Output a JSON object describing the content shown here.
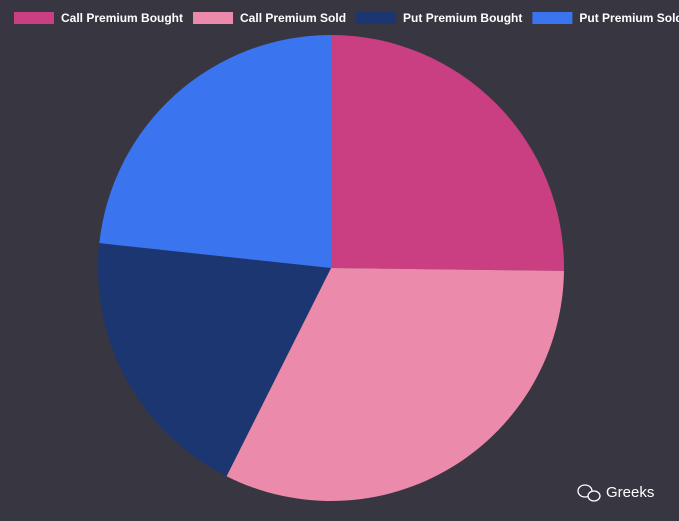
{
  "chart_data": {
    "type": "pie",
    "categories": [
      "Call Premium Bought",
      "Call Premium Sold",
      "Put Premium Bought",
      "Put Premium Sold"
    ],
    "values": [
      25.2,
      32.2,
      19.3,
      23.3
    ],
    "colors": [
      "#c93f82",
      "#ec8aab",
      "#1b3670",
      "#3a74ef"
    ],
    "legend": "top"
  },
  "watermark": "Greeks"
}
